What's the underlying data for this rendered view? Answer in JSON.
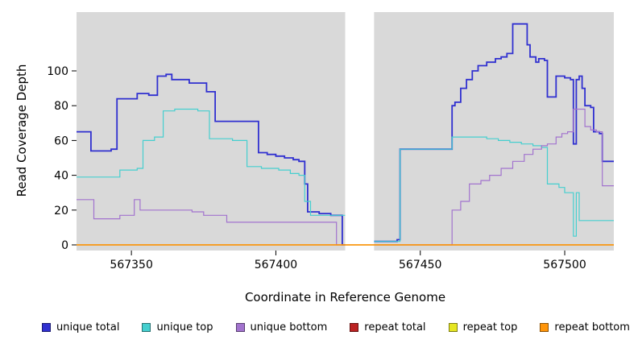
{
  "chart_data": {
    "type": "line",
    "step": true,
    "title": "",
    "xlabel": "Coordinate in Reference Genome",
    "ylabel": "Read Coverage Depth",
    "xlim": [
      567331,
      567517
    ],
    "ylim": [
      0,
      134
    ],
    "xticks": [
      567350,
      567400,
      567450,
      567500
    ],
    "yticks": [
      0,
      20,
      40,
      60,
      80,
      100
    ],
    "plot_bg": "#d9d9d9",
    "figure_bg": "#ffffff",
    "grid": false,
    "legend_position": "bottom",
    "gap_region": {
      "x0": 567424,
      "x1": 567434
    },
    "series": [
      {
        "name": "unique total",
        "color": "#3030d0",
        "width": 1.8,
        "segments": [
          [
            [
              567331,
              65
            ],
            [
              567336,
              54
            ],
            [
              567342,
              54
            ],
            [
              567343,
              55
            ],
            [
              567345,
              84
            ],
            [
              567350,
              84
            ],
            [
              567352,
              87
            ],
            [
              567356,
              86
            ],
            [
              567359,
              97
            ],
            [
              567362,
              98
            ],
            [
              567364,
              95
            ],
            [
              567368,
              95
            ],
            [
              567370,
              93
            ],
            [
              567374,
              93
            ],
            [
              567376,
              88
            ],
            [
              567379,
              71
            ],
            [
              567392,
              71
            ],
            [
              567394,
              53
            ],
            [
              567397,
              52
            ],
            [
              567400,
              51
            ],
            [
              567403,
              50
            ],
            [
              567406,
              49
            ],
            [
              567408,
              48
            ],
            [
              567410,
              35
            ],
            [
              567411,
              19
            ],
            [
              567415,
              18
            ],
            [
              567419,
              17
            ],
            [
              567422,
              17
            ],
            [
              567423,
              0
            ],
            [
              567424,
              0
            ]
          ],
          [
            [
              567434,
              2
            ],
            [
              567441,
              2
            ],
            [
              567442,
              3
            ],
            [
              567443,
              55
            ],
            [
              567459,
              55
            ],
            [
              567461,
              80
            ],
            [
              567462,
              82
            ],
            [
              567464,
              90
            ],
            [
              567466,
              95
            ],
            [
              567468,
              100
            ],
            [
              567470,
              103
            ],
            [
              567473,
              105
            ],
            [
              567476,
              107
            ],
            [
              567478,
              108
            ],
            [
              567480,
              110
            ],
            [
              567482,
              127
            ],
            [
              567486,
              127
            ],
            [
              567487,
              115
            ],
            [
              567488,
              108
            ],
            [
              567490,
              105
            ],
            [
              567491,
              107
            ],
            [
              567493,
              106
            ],
            [
              567494,
              85
            ],
            [
              567496,
              85
            ],
            [
              567497,
              97
            ],
            [
              567500,
              96
            ],
            [
              567502,
              95
            ],
            [
              567503,
              58
            ],
            [
              567504,
              95
            ],
            [
              567505,
              97
            ],
            [
              567506,
              90
            ],
            [
              567507,
              80
            ],
            [
              567509,
              79
            ],
            [
              567510,
              65
            ],
            [
              567512,
              64
            ],
            [
              567513,
              48
            ],
            [
              567517,
              48
            ]
          ]
        ]
      },
      {
        "name": "unique top",
        "color": "#45cfcf",
        "width": 1.2,
        "segments": [
          [
            [
              567331,
              39
            ],
            [
              567345,
              39
            ],
            [
              567346,
              43
            ],
            [
              567352,
              44
            ],
            [
              567354,
              60
            ],
            [
              567358,
              62
            ],
            [
              567361,
              77
            ],
            [
              567365,
              78
            ],
            [
              567373,
              77
            ],
            [
              567377,
              61
            ],
            [
              567385,
              60
            ],
            [
              567390,
              45
            ],
            [
              567395,
              44
            ],
            [
              567401,
              43
            ],
            [
              567405,
              41
            ],
            [
              567408,
              40
            ],
            [
              567410,
              25
            ],
            [
              567412,
              17
            ],
            [
              567424,
              17
            ]
          ],
          [
            [
              567434,
              2
            ],
            [
              567442,
              2
            ],
            [
              567443,
              55
            ],
            [
              567459,
              55
            ],
            [
              567461,
              62
            ],
            [
              567469,
              62
            ],
            [
              567473,
              61
            ],
            [
              567477,
              60
            ],
            [
              567481,
              59
            ],
            [
              567485,
              58
            ],
            [
              567489,
              57
            ],
            [
              567492,
              56
            ],
            [
              567494,
              35
            ],
            [
              567498,
              33
            ],
            [
              567500,
              30
            ],
            [
              567502,
              30
            ],
            [
              567503,
              5
            ],
            [
              567504,
              30
            ],
            [
              567505,
              14
            ],
            [
              567517,
              14
            ]
          ]
        ]
      },
      {
        "name": "unique bottom",
        "color": "#a273ce",
        "width": 1.2,
        "segments": [
          [
            [
              567331,
              26
            ],
            [
              567336,
              26
            ],
            [
              567337,
              15
            ],
            [
              567345,
              15
            ],
            [
              567346,
              17
            ],
            [
              567351,
              26
            ],
            [
              567353,
              20
            ],
            [
              567365,
              20
            ],
            [
              567371,
              19
            ],
            [
              567375,
              17
            ],
            [
              567379,
              17
            ],
            [
              567383,
              13
            ],
            [
              567419,
              13
            ],
            [
              567421,
              0
            ],
            [
              567424,
              0
            ]
          ],
          [
            [
              567434,
              0
            ],
            [
              567459,
              0
            ],
            [
              567461,
              20
            ],
            [
              567464,
              25
            ],
            [
              567467,
              35
            ],
            [
              567471,
              37
            ],
            [
              567474,
              40
            ],
            [
              567478,
              44
            ],
            [
              567482,
              48
            ],
            [
              567486,
              52
            ],
            [
              567489,
              55
            ],
            [
              567492,
              57
            ],
            [
              567494,
              58
            ],
            [
              567497,
              62
            ],
            [
              567499,
              64
            ],
            [
              567501,
              65
            ],
            [
              567503,
              78
            ],
            [
              567506,
              78
            ],
            [
              567507,
              68
            ],
            [
              567509,
              66
            ],
            [
              567511,
              65
            ],
            [
              567513,
              34
            ],
            [
              567517,
              34
            ]
          ]
        ]
      },
      {
        "name": "repeat total",
        "color": "#bb2222",
        "width": 1.2,
        "segments": [
          [
            [
              567331,
              0
            ],
            [
              567517,
              0
            ]
          ]
        ]
      },
      {
        "name": "repeat top",
        "color": "#e6e622",
        "width": 1.2,
        "segments": [
          [
            [
              567331,
              0
            ],
            [
              567517,
              0
            ]
          ]
        ]
      },
      {
        "name": "repeat bottom",
        "color": "#ff950a",
        "width": 1.5,
        "segments": [
          [
            [
              567331,
              0
            ],
            [
              567517,
              0
            ]
          ]
        ]
      }
    ]
  }
}
